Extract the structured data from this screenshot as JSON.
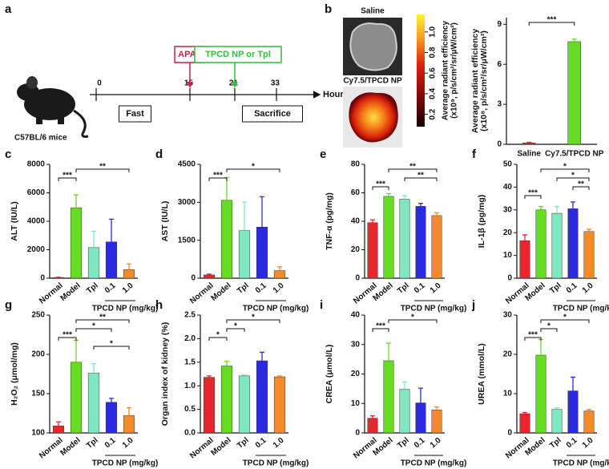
{
  "timeline": {
    "label": "a",
    "subject": "C57BL/6 mice",
    "unit": "Hours",
    "points": [
      0,
      15,
      21,
      33
    ],
    "events": [
      {
        "label": "APAP",
        "at": 15,
        "color": "#c4224a"
      },
      {
        "label": "TPCD NP or Tpl",
        "at": 21,
        "color": "#2fbf3a"
      }
    ],
    "phases": [
      {
        "label": "Fast",
        "from": 0,
        "to": 15
      },
      {
        "label": "Sacrifice",
        "from": 21,
        "to": 33
      }
    ]
  },
  "imaging": {
    "label": "b",
    "images": [
      "Saline",
      "Cy7.5/TPCD NP"
    ],
    "colorbar": {
      "label": [
        "Average radiant efficiency",
        "(x10⁹, p/s/cm²/sr/μW/cm²)"
      ],
      "lim": [
        0.08,
        1.17
      ],
      "ticks": [
        0.2,
        0.4,
        0.6,
        0.8,
        {
          "value": 1.0,
          "label": "1.0"
        }
      ]
    }
  },
  "chart_data": [
    {
      "type": "bar",
      "ylabel": [
        "Average radiant efficiency",
        "(x10⁸, p/s/cm²/sr/μW/cm²)"
      ],
      "categories": [
        "Saline",
        "Cy7.5/TPCD NP"
      ],
      "colors": [
        "#e8262d",
        "#66dd22"
      ],
      "values": [
        0.1,
        7.7
      ],
      "errors": [
        0.05,
        0.2
      ],
      "ylim": [
        0,
        9.5
      ],
      "yticks": [
        0,
        3,
        6,
        9
      ],
      "significance": [
        {
          "from": 0,
          "to": 1,
          "label": "***"
        }
      ]
    },
    {
      "type": "bar",
      "panel": "c",
      "ylabel": [
        "ALT (IU/L)"
      ],
      "categories": [
        "Normal",
        "Model",
        "Tpl",
        "0.1",
        "1.0"
      ],
      "colors": [
        "#e8262d",
        "#66dd22",
        "#7fe8c0",
        "#2a2ae0",
        "#f58a2a"
      ],
      "values": [
        50,
        4950,
        2150,
        2550,
        600
      ],
      "errors": [
        20,
        900,
        1150,
        1600,
        400
      ],
      "ylim": [
        0,
        8000
      ],
      "yticks": [
        0,
        2000,
        4000,
        6000,
        8000
      ],
      "group": {
        "label": "TPCD NP (mg/kg)",
        "from": 3,
        "to": 4
      },
      "significance": [
        {
          "from": 0,
          "to": 1,
          "label": "***"
        },
        {
          "from": 1,
          "to": 4,
          "label": "**"
        }
      ]
    },
    {
      "type": "bar",
      "panel": "d",
      "ylabel": [
        "AST (IU/L)"
      ],
      "categories": [
        "Normal",
        "Model",
        "Tpl",
        "0.1",
        "1.0"
      ],
      "colors": [
        "#e8262d",
        "#66dd22",
        "#7fe8c0",
        "#2a2ae0",
        "#f58a2a"
      ],
      "values": [
        130,
        3080,
        1880,
        2020,
        300
      ],
      "errors": [
        30,
        900,
        1130,
        1200,
        150
      ],
      "ylim": [
        0,
        4500
      ],
      "yticks": [
        0,
        1500,
        3000,
        4500
      ],
      "group": {
        "label": "TPCD NP (mg/kg)",
        "from": 3,
        "to": 4
      },
      "significance": [
        {
          "from": 0,
          "to": 1,
          "label": "***"
        },
        {
          "from": 1,
          "to": 4,
          "label": "*"
        }
      ]
    },
    {
      "type": "bar",
      "panel": "e",
      "ylabel": [
        "TNF-α (pg/mg)"
      ],
      "categories": [
        "Normal",
        "Model",
        "Tpl",
        "0.1",
        "1.0"
      ],
      "colors": [
        "#e8262d",
        "#66dd22",
        "#7fe8c0",
        "#2a2ae0",
        "#f58a2a"
      ],
      "values": [
        39,
        57.5,
        55.5,
        50.5,
        44
      ],
      "errors": [
        2,
        2,
        2.5,
        2,
        2
      ],
      "ylim": [
        0,
        80
      ],
      "yticks": [
        0,
        20,
        40,
        60,
        80
      ],
      "group": {
        "label": "TPCD NP (mg/kg)",
        "from": 3,
        "to": 4
      },
      "significance": [
        {
          "from": 0,
          "to": 1,
          "label": "***"
        },
        {
          "from": 2,
          "to": 4,
          "label": "**"
        },
        {
          "from": 1,
          "to": 4,
          "label": "**"
        }
      ]
    },
    {
      "type": "bar",
      "panel": "f",
      "ylabel": [
        "IL-1β (pg/mg)"
      ],
      "categories": [
        "Normal",
        "Model",
        "Tpl",
        "0.1",
        "1.0"
      ],
      "colors": [
        "#e8262d",
        "#66dd22",
        "#7fe8c0",
        "#2a2ae0",
        "#f58a2a"
      ],
      "values": [
        16.5,
        30,
        28.5,
        30.5,
        20.5
      ],
      "errors": [
        2.5,
        1.5,
        3,
        3,
        1
      ],
      "ylim": [
        0,
        50
      ],
      "yticks": [
        0,
        10,
        20,
        30,
        40,
        50
      ],
      "group": {
        "label": "TPCD NP (mg/kg)",
        "from": 3,
        "to": 4
      },
      "significance": [
        {
          "from": 0,
          "to": 1,
          "label": "***"
        },
        {
          "from": 3,
          "to": 4,
          "label": "**"
        },
        {
          "from": 2,
          "to": 4,
          "label": "*"
        },
        {
          "from": 1,
          "to": 4,
          "label": "*"
        }
      ]
    },
    {
      "type": "bar",
      "panel": "g",
      "ylabel": [
        "H₂O₂ (μmol/mg)"
      ],
      "categories": [
        "Normal",
        "Model",
        "Tpl",
        "0.1",
        "1.0"
      ],
      "colors": [
        "#e8262d",
        "#66dd22",
        "#7fe8c0",
        "#2a2ae0",
        "#f58a2a"
      ],
      "values": [
        109,
        190,
        176,
        139,
        122
      ],
      "errors": [
        5,
        28,
        12,
        5,
        10
      ],
      "ylim": [
        100,
        250
      ],
      "yticks": [
        100,
        150,
        200,
        250
      ],
      "group": {
        "label": "TPCD NP (mg/kg)",
        "from": 3,
        "to": 4
      },
      "significance": [
        {
          "from": 2,
          "to": 4,
          "label": "*"
        },
        {
          "from": 0,
          "to": 1,
          "label": "***"
        },
        {
          "from": 1,
          "to": 3,
          "label": "*"
        },
        {
          "from": 1,
          "to": 4,
          "label": "**"
        }
      ]
    },
    {
      "type": "bar",
      "panel": "h",
      "ylabel": [
        "Organ index of kidney (%)"
      ],
      "categories": [
        "Normal",
        "Model",
        "Tpl",
        "0.1",
        "1.0"
      ],
      "colors": [
        "#e8262d",
        "#66dd22",
        "#7fe8c0",
        "#2a2ae0",
        "#f58a2a"
      ],
      "values": [
        1.18,
        1.42,
        1.21,
        1.53,
        1.19
      ],
      "errors": [
        0.03,
        0.1,
        0.02,
        0.18,
        0.02
      ],
      "ylim": [
        0,
        2.5
      ],
      "yticks": [
        {
          "value": 0,
          "label": "0.0"
        },
        0.5,
        {
          "value": 1,
          "label": "1.0"
        },
        1.5,
        {
          "value": 2,
          "label": "2.0"
        },
        2.5
      ],
      "group": {
        "label": "TPCD NP (mg/kg)",
        "from": 3,
        "to": 4
      },
      "significance": [
        {
          "from": 0,
          "to": 1,
          "label": "*"
        },
        {
          "from": 1,
          "to": 2,
          "label": "*"
        },
        {
          "from": 1,
          "to": 4,
          "label": "*"
        }
      ]
    },
    {
      "type": "bar",
      "panel": "i",
      "ylabel": [
        "CREA (μmol/L)"
      ],
      "categories": [
        "Normal",
        "Model",
        "Tpl",
        "0.1",
        "1.0"
      ],
      "colors": [
        "#e8262d",
        "#66dd22",
        "#7fe8c0",
        "#2a2ae0",
        "#f58a2a"
      ],
      "values": [
        5,
        24.5,
        14.8,
        10.2,
        7.8
      ],
      "errors": [
        0.8,
        6,
        2.5,
        5,
        1
      ],
      "ylim": [
        0,
        40
      ],
      "yticks": [
        0,
        10,
        20,
        30,
        40
      ],
      "group": {
        "label": "TPCD NP (mg/kg)",
        "from": 3,
        "to": 4
      },
      "significance": [
        {
          "from": 0,
          "to": 1,
          "label": "***"
        },
        {
          "from": 1,
          "to": 4,
          "label": "*"
        }
      ]
    },
    {
      "type": "bar",
      "panel": "j",
      "ylabel": [
        "UREA (mmol/L)"
      ],
      "categories": [
        "Normal",
        "Model",
        "Tpl",
        "0.1",
        "1.0"
      ],
      "colors": [
        "#e8262d",
        "#66dd22",
        "#7fe8c0",
        "#2a2ae0",
        "#f58a2a"
      ],
      "values": [
        4.9,
        19.8,
        6,
        10.7,
        5.6
      ],
      "errors": [
        0.3,
        4,
        0.4,
        3.5,
        0.4
      ],
      "ylim": [
        0,
        30
      ],
      "yticks": [
        0,
        10,
        20,
        30
      ],
      "group": {
        "label": "TPCD NP (mg/kg)",
        "from": 3,
        "to": 4
      },
      "significance": [
        {
          "from": 0,
          "to": 1,
          "label": "***"
        },
        {
          "from": 1,
          "to": 2,
          "label": "*"
        },
        {
          "from": 1,
          "to": 4,
          "label": "*"
        }
      ]
    }
  ]
}
